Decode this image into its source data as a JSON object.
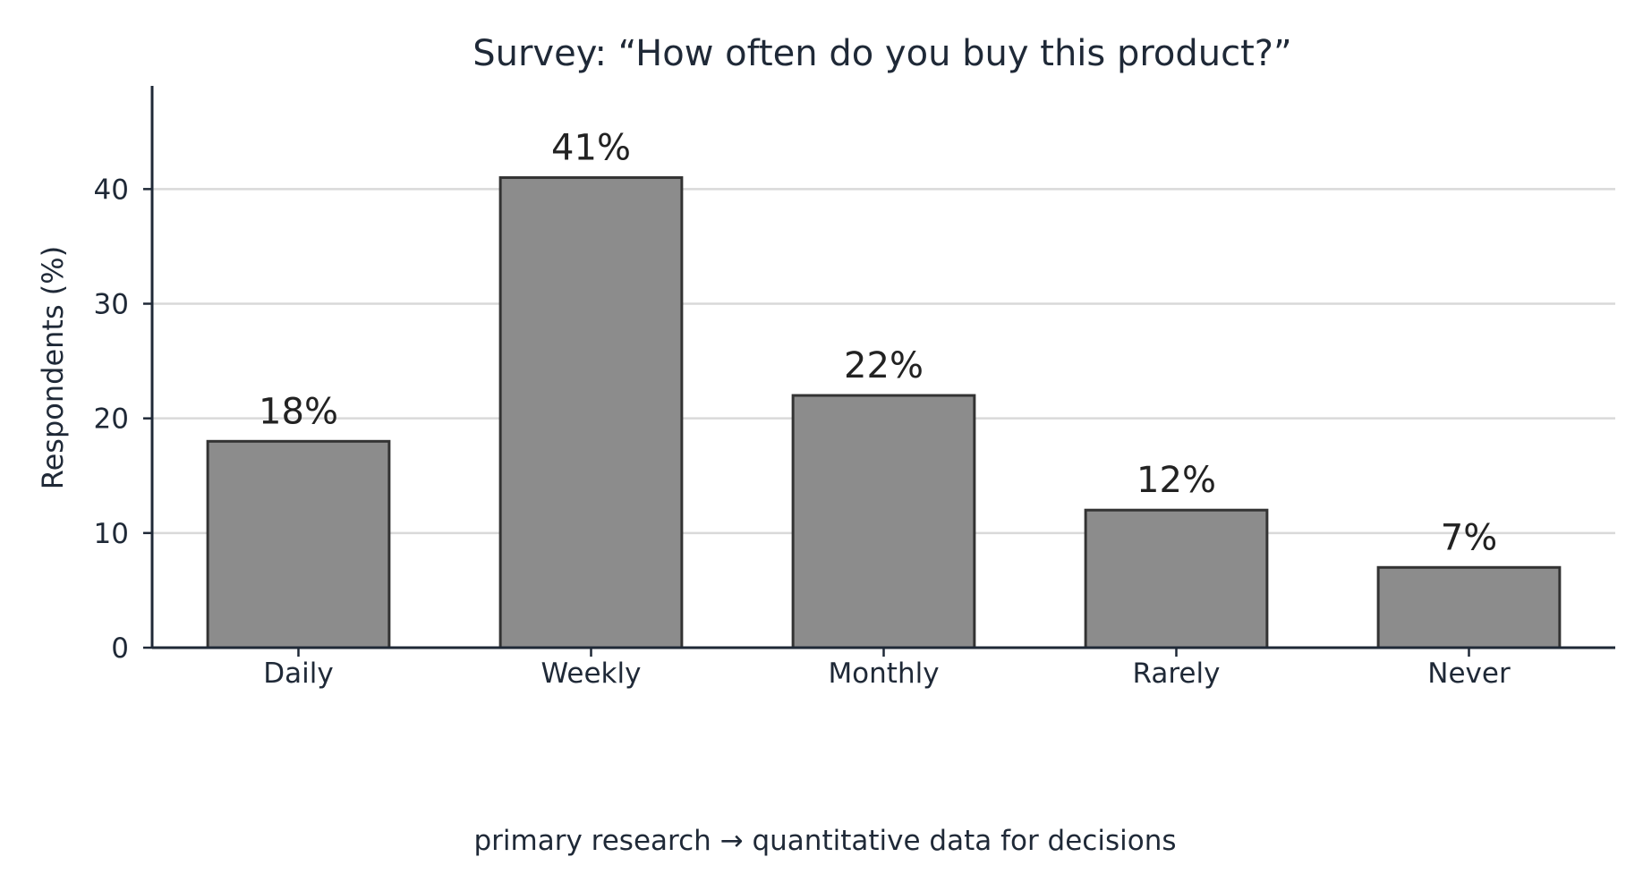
{
  "chart_data": {
    "type": "bar",
    "title": "Survey: “How often do you buy this product?”",
    "xlabel": "",
    "ylabel": "Respondents (%)",
    "categories": [
      "Daily",
      "Weekly",
      "Monthly",
      "Rarely",
      "Never"
    ],
    "values": [
      18,
      41,
      22,
      12,
      7
    ],
    "value_labels": [
      "18%",
      "41%",
      "22%",
      "12%",
      "7%"
    ],
    "ylim": [
      0,
      49
    ],
    "yticks": [
      0,
      10,
      20,
      30,
      40
    ],
    "ytick_labels": [
      "0",
      "10",
      "20",
      "30",
      "40"
    ],
    "grid": true,
    "grid_axis": "y",
    "legend": "none",
    "colors": {
      "bar_fill": "#8c8c8c",
      "bar_edge": "#333333",
      "grid": "#d9d9d9",
      "axis": "#1f2937",
      "text": "#1f2937"
    }
  },
  "caption": "primary research → quantitative data for decisions"
}
